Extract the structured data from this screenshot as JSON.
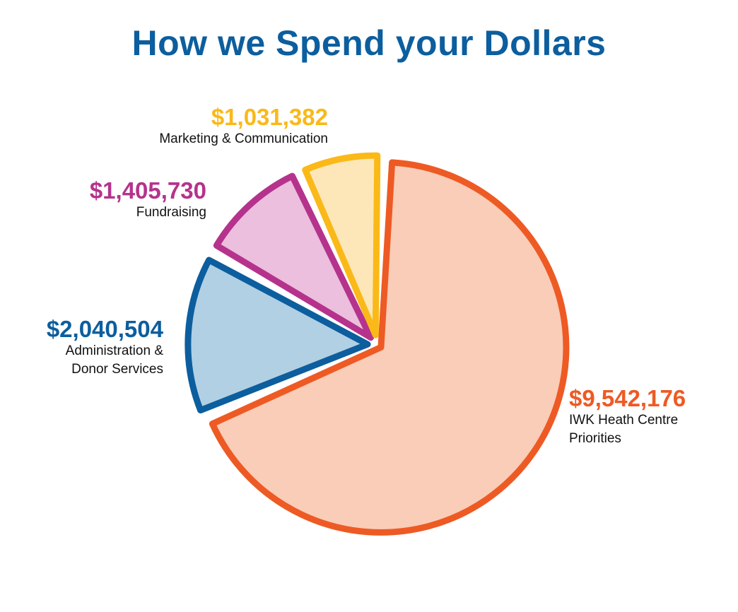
{
  "title": "How we Spend your Dollars",
  "chart_data": {
    "type": "pie",
    "title": "How we Spend your Dollars",
    "slices": [
      {
        "label_lines": [
          "IWK Heath Centre",
          "Priorities"
        ],
        "value": 9542176,
        "value_label": "$9,542,176",
        "stroke": "#ee5a24",
        "fill": "#f9cdb8"
      },
      {
        "label_lines": [
          "Administration &",
          "Donor Services"
        ],
        "value": 2040504,
        "value_label": "$2,040,504",
        "stroke": "#0c5e9e",
        "fill": "#b2d0e3"
      },
      {
        "label_lines": [
          "Fundraising"
        ],
        "value": 1405730,
        "value_label": "$1,405,730",
        "stroke": "#b5338c",
        "fill": "#ebbfdd"
      },
      {
        "label_lines": [
          "Marketing & Communication"
        ],
        "value": 1031382,
        "value_label": "$1,031,382",
        "stroke": "#fab918",
        "fill": "#fde7b9"
      }
    ]
  }
}
